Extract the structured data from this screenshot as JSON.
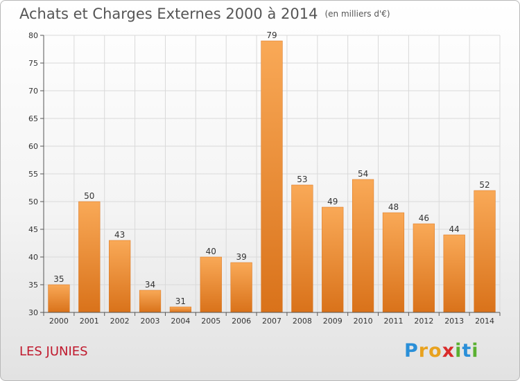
{
  "header": {
    "title": "Achats et Charges Externes 2000 à 2014",
    "unit": "(en milliers d'€)"
  },
  "footer": {
    "place": "LES JUNIES",
    "logo_letters": [
      {
        "ch": "P",
        "color": "#2a8fd8"
      },
      {
        "ch": "r",
        "color": "#e8a21f"
      },
      {
        "ch": "o",
        "color": "#e8a21f"
      },
      {
        "ch": "x",
        "color": "#d92b2b"
      },
      {
        "ch": "i",
        "color": "#5ab031"
      },
      {
        "ch": "t",
        "color": "#2a8fd8"
      },
      {
        "ch": "i",
        "color": "#5ab031"
      }
    ]
  },
  "chart_data": {
    "type": "bar",
    "title": "Achats et Charges Externes 2000 à 2014",
    "subtitle": "(en milliers d'€)",
    "categories": [
      "2000",
      "2001",
      "2002",
      "2003",
      "2004",
      "2005",
      "2006",
      "2007",
      "2008",
      "2009",
      "2010",
      "2011",
      "2012",
      "2013",
      "2014"
    ],
    "values": [
      35,
      50,
      43,
      34,
      31,
      40,
      39,
      79,
      53,
      49,
      54,
      48,
      46,
      44,
      52
    ],
    "yticks": [
      30,
      35,
      40,
      45,
      50,
      55,
      60,
      65,
      70,
      75,
      80
    ],
    "ylim": [
      30,
      80
    ],
    "grid": true,
    "bar_color": "#f28c28",
    "bar_color_light": "#f9a957",
    "bar_color_dark": "#d9721a",
    "grid_color": "#d9d9d9"
  }
}
